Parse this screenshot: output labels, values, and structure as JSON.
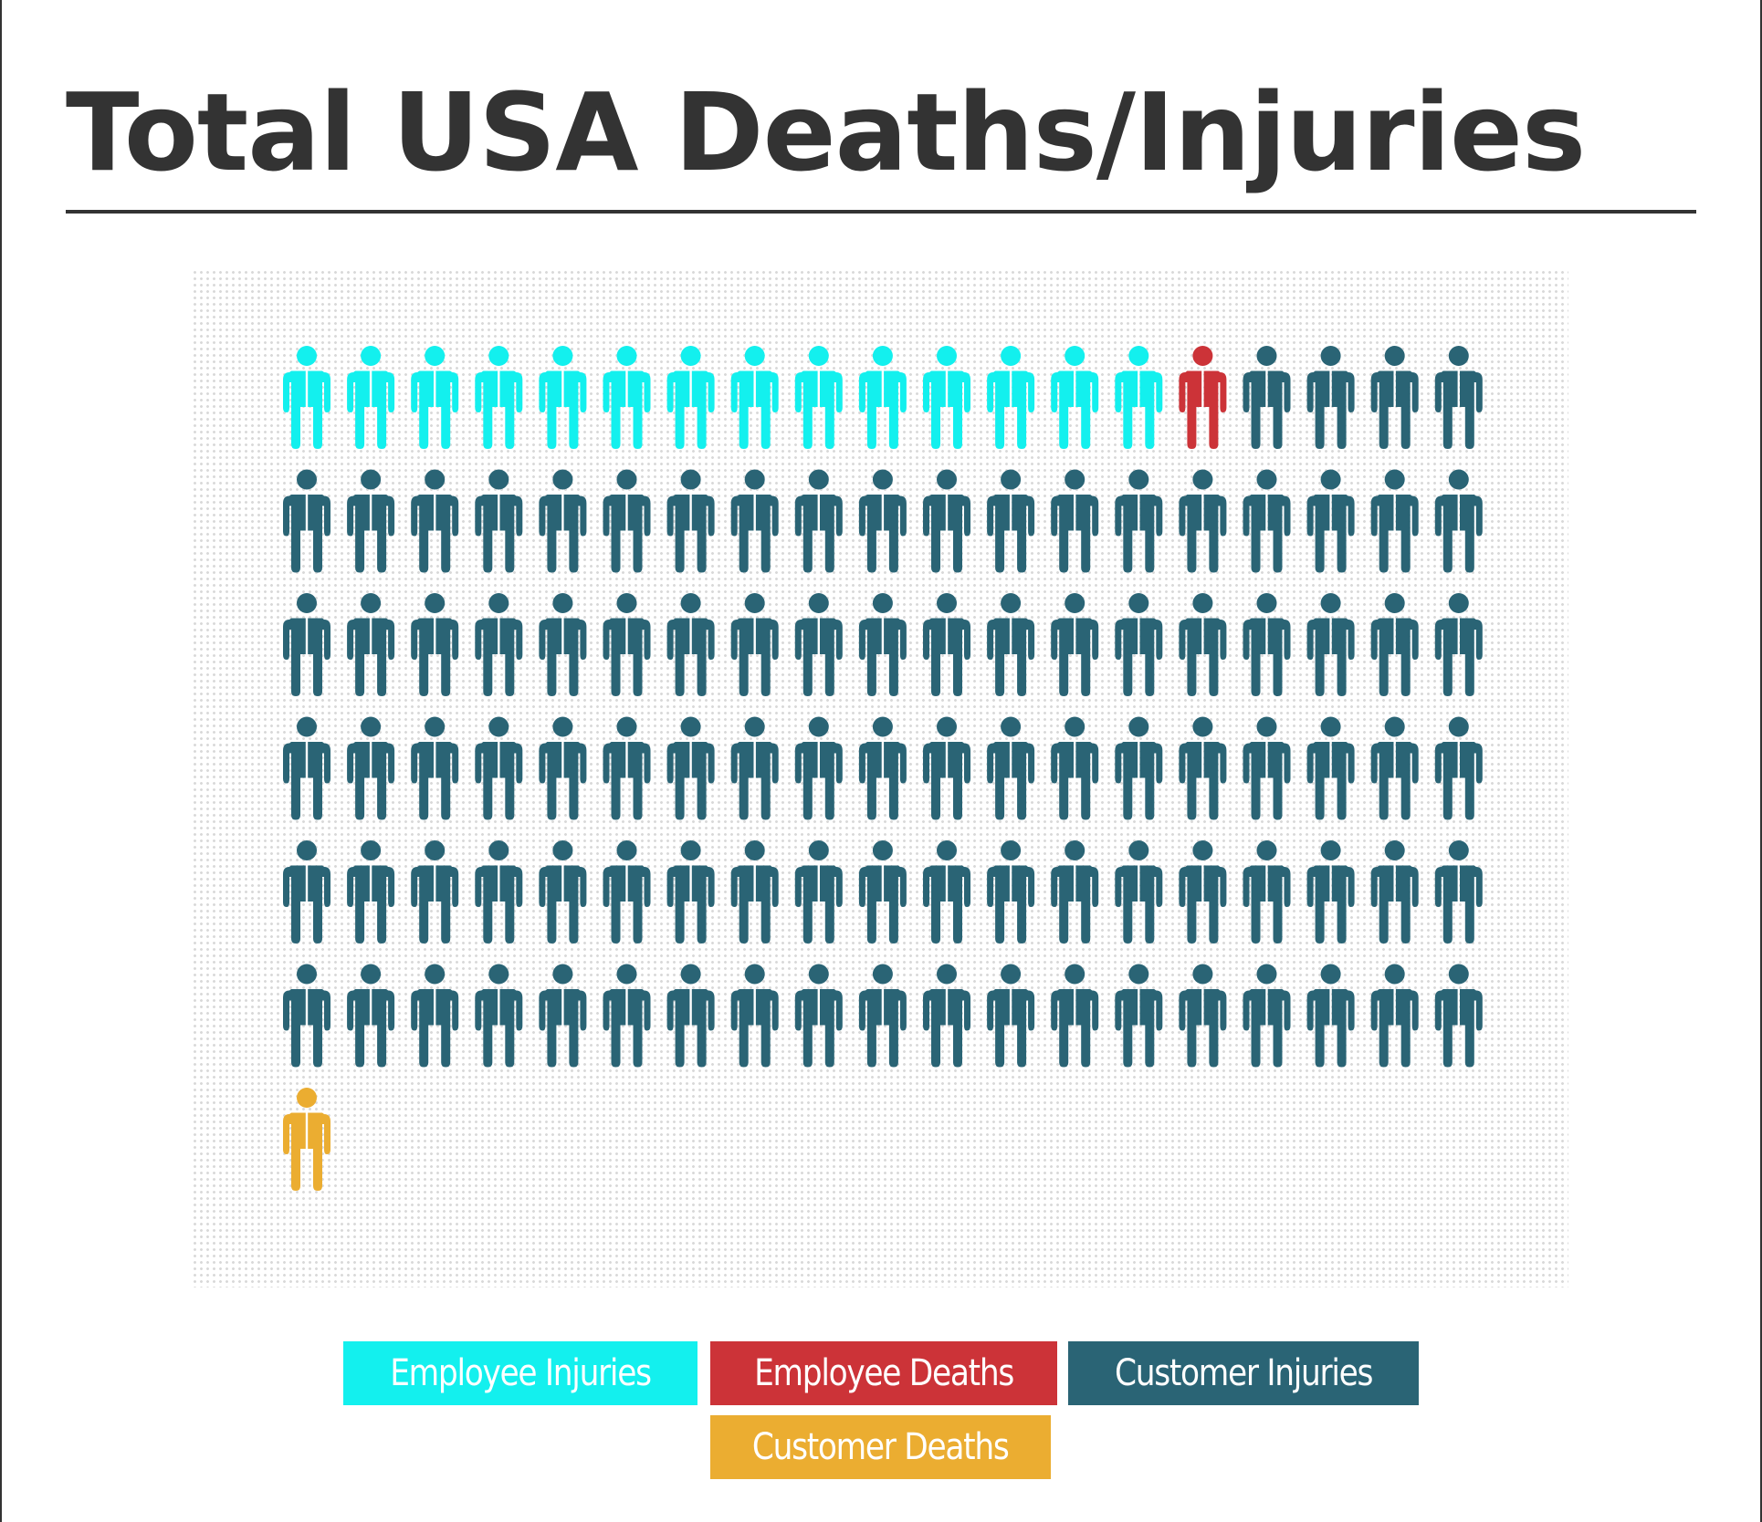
{
  "title": "Total USA Deaths/Injuries",
  "chart_data": {
    "type": "pictogram",
    "title": "Total USA Deaths/Injuries",
    "units_per_icon": 1,
    "icons_per_row": 19,
    "series": [
      {
        "name": "Employee Injuries",
        "value": 14,
        "color": "#13F0EE"
      },
      {
        "name": "Employee Deaths",
        "value": 1,
        "color": "#CC3338"
      },
      {
        "name": "Customer Injuries",
        "value": 99,
        "color": "#2A6475"
      },
      {
        "name": "Customer Deaths",
        "value": 1,
        "color": "#EBAD31"
      }
    ],
    "legend": {
      "placement": "bottom-center",
      "labels": [
        "Employee Injuries",
        "Employee Deaths",
        "Customer Injuries",
        "Customer Deaths"
      ]
    }
  }
}
